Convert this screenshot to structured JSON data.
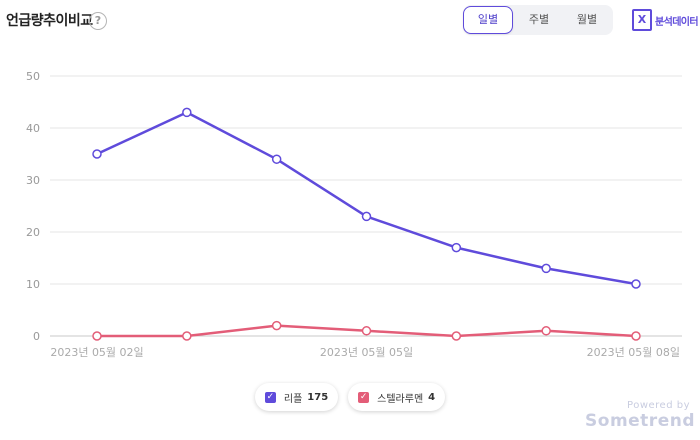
{
  "header": {
    "title": "언급량추이비교",
    "help_symbol": "?"
  },
  "period_tabs": [
    {
      "label": "일별",
      "active": true
    },
    {
      "label": "주별",
      "active": false
    },
    {
      "label": "월별",
      "active": false
    }
  ],
  "analysis_button": {
    "label": "분석데이터",
    "icon_symbol": "X"
  },
  "chart_data": {
    "type": "line",
    "title": "",
    "xlabel": "",
    "ylabel": "",
    "x": [
      "2023년 05월 02일",
      "2023년 05월 03일",
      "2023년 05월 04일",
      "2023년 05월 05일",
      "2023년 05월 06일",
      "2023년 05월 07일",
      "2023년 05월 08일"
    ],
    "x_tick_labels": [
      "2023년 05월 02일",
      "2023년 05월 05일",
      "2023년 05월 08일"
    ],
    "ylim": [
      0,
      50
    ],
    "y_ticks": [
      0,
      10,
      20,
      30,
      40,
      50
    ],
    "grid": true,
    "series": [
      {
        "name": "리플",
        "total": 175,
        "color": "#5f4bdb",
        "values": [
          35,
          43,
          34,
          23,
          17,
          13,
          10
        ]
      },
      {
        "name": "스텔라루멘",
        "total": 4,
        "color": "#e35d78",
        "values": [
          0,
          0,
          2,
          1,
          0,
          1,
          0
        ]
      }
    ],
    "legend_position": "bottom"
  },
  "legend_check_symbol": "✓",
  "watermark": {
    "powered_by": "Powered by",
    "brand": "Sometrend"
  }
}
